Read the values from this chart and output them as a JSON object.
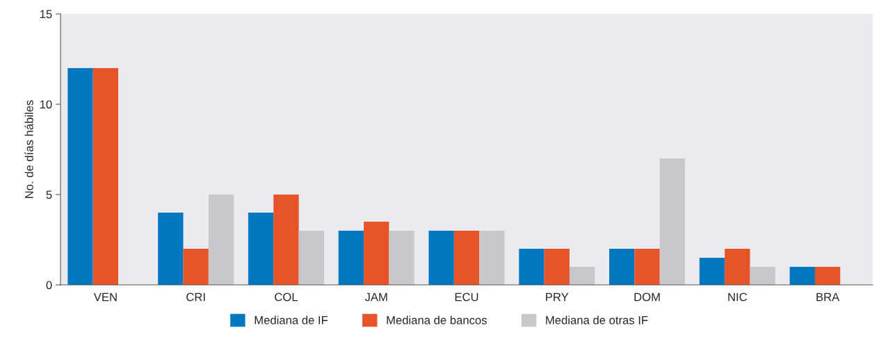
{
  "chart_data": {
    "type": "bar",
    "ylabel": "No. de días hábiles",
    "categories": [
      "VEN",
      "CRI",
      "COL",
      "JAM",
      "ECU",
      "PRY",
      "DOM",
      "NIC",
      "BRA"
    ],
    "series": [
      {
        "name": "Mediana de IF",
        "color": "#0077c0",
        "values": [
          12,
          4,
          4,
          3,
          3,
          2,
          2,
          1.5,
          1
        ]
      },
      {
        "name": "Mediana de bancos",
        "color": "#e8542a",
        "values": [
          12,
          2,
          5,
          3.5,
          3,
          2,
          2,
          2,
          1
        ]
      },
      {
        "name": "Mediana de otras IF",
        "color": "#c8c8ca",
        "values": [
          null,
          5,
          3,
          3,
          3,
          1,
          7,
          1,
          null
        ]
      }
    ],
    "ylim": [
      0,
      15
    ],
    "yticks": [
      0,
      5,
      10,
      15
    ],
    "grid": false,
    "legend": "bottom"
  }
}
